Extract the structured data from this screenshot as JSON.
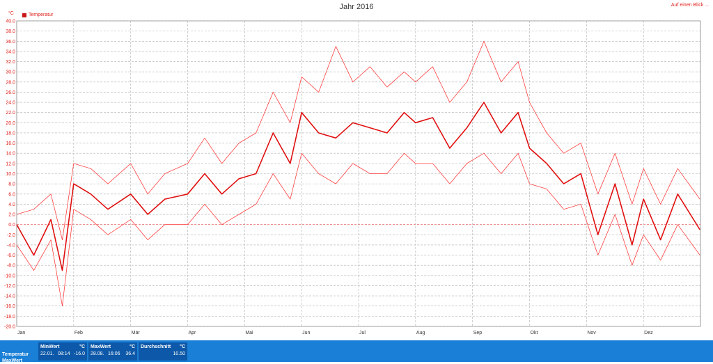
{
  "header": {
    "title": "Jahr 2016",
    "overview_link": "Auf einen Blick ..."
  },
  "legend": {
    "label": "Temperatur",
    "color": "#c8181a"
  },
  "stats": {
    "row_labels": [
      "Temperatur",
      "MaxWert"
    ],
    "min": {
      "header": "MinWert",
      "unit": "°C",
      "date": "22.01.",
      "time": "08:14",
      "value": "-16.0"
    },
    "max": {
      "header": "MaxWert",
      "unit": "°C",
      "date": "28.08.",
      "time": "16:06",
      "value": "36.4"
    },
    "avg": {
      "header": "Durchschnitt",
      "unit": "°C",
      "value": "10.50"
    }
  },
  "chart_data": {
    "type": "line",
    "title": "Jahr 2016",
    "ylabel": "°C",
    "ylim": [
      -20,
      40
    ],
    "ytick_step": 2,
    "y_ticks": [
      "40.0",
      "38.0",
      "36.0",
      "34.0",
      "32.0",
      "30.0",
      "28.0",
      "26.0",
      "24.0",
      "22.0",
      "20.0",
      "18.0",
      "16.0",
      "14.0",
      "12.0",
      "10.0",
      "8.0",
      "6.0",
      "4.0",
      "2.0",
      "0.0",
      "-2.0",
      "-4.0",
      "-6.0",
      "-8.0",
      "-10.0",
      "-12.0",
      "-14.0",
      "-16.0",
      "-18.0",
      "-20.0"
    ],
    "x_tick_labels": [
      "Jan",
      "Feb",
      "Mär",
      "Apr",
      "Mai",
      "Jun",
      "Jul",
      "Aug",
      "Sep",
      "Okt",
      "Nov",
      "Dez"
    ],
    "grid": true,
    "legend_position": "top-left",
    "colors": {
      "avg": "#e01010",
      "minmax": "#ff4040",
      "grid": "#b0b0b0",
      "axis_text": "#e0201c"
    },
    "series": [
      {
        "name": "Temperatur",
        "x_months": [
          0.0,
          0.3,
          0.6,
          0.8,
          1.0,
          1.3,
          1.6,
          2.0,
          2.3,
          2.6,
          3.0,
          3.3,
          3.6,
          3.9,
          4.2,
          4.5,
          4.8,
          5.0,
          5.3,
          5.6,
          5.9,
          6.2,
          6.5,
          6.8,
          7.0,
          7.3,
          7.6,
          7.9,
          8.2,
          8.5,
          8.8,
          9.0,
          9.3,
          9.6,
          9.9,
          10.2,
          10.5,
          10.8,
          11.0,
          11.3,
          11.6,
          11.99
        ],
        "values": [
          0,
          -6,
          1,
          -9,
          8,
          6,
          3,
          6,
          2,
          5,
          6,
          10,
          6,
          9,
          10,
          18,
          12,
          22,
          18,
          17,
          20,
          19,
          18,
          22,
          20,
          21,
          15,
          19,
          24,
          18,
          22,
          15,
          12,
          8,
          10,
          -2,
          8,
          -4,
          5,
          -3,
          6,
          -1
        ]
      },
      {
        "name": "Max",
        "x_months": [
          0.0,
          0.3,
          0.6,
          0.8,
          1.0,
          1.3,
          1.6,
          2.0,
          2.3,
          2.6,
          3.0,
          3.3,
          3.6,
          3.9,
          4.2,
          4.5,
          4.8,
          5.0,
          5.3,
          5.6,
          5.9,
          6.2,
          6.5,
          6.8,
          7.0,
          7.3,
          7.6,
          7.9,
          8.2,
          8.5,
          8.8,
          9.0,
          9.3,
          9.6,
          9.9,
          10.2,
          10.5,
          10.8,
          11.0,
          11.3,
          11.6,
          11.99
        ],
        "values": [
          2,
          3,
          6,
          -3,
          12,
          11,
          8,
          12,
          6,
          10,
          12,
          17,
          12,
          16,
          18,
          26,
          20,
          29,
          26,
          35,
          28,
          31,
          27,
          30,
          28,
          31,
          24,
          28,
          36,
          28,
          32,
          24,
          18,
          14,
          16,
          6,
          14,
          4,
          11,
          4,
          11,
          5
        ]
      },
      {
        "name": "Min",
        "x_months": [
          0.0,
          0.3,
          0.6,
          0.8,
          1.0,
          1.3,
          1.6,
          2.0,
          2.3,
          2.6,
          3.0,
          3.3,
          3.6,
          3.9,
          4.2,
          4.5,
          4.8,
          5.0,
          5.3,
          5.6,
          5.9,
          6.2,
          6.5,
          6.8,
          7.0,
          7.3,
          7.6,
          7.9,
          8.2,
          8.5,
          8.8,
          9.0,
          9.3,
          9.6,
          9.9,
          10.2,
          10.5,
          10.8,
          11.0,
          11.3,
          11.6,
          11.99
        ],
        "values": [
          -4,
          -9,
          -3,
          -16,
          3,
          1,
          -2,
          1,
          -3,
          0,
          0,
          4,
          0,
          2,
          4,
          10,
          5,
          14,
          10,
          8,
          12,
          10,
          10,
          14,
          12,
          12,
          8,
          12,
          14,
          10,
          14,
          8,
          7,
          3,
          4,
          -6,
          2,
          -8,
          -2,
          -7,
          0,
          -6
        ]
      }
    ]
  }
}
